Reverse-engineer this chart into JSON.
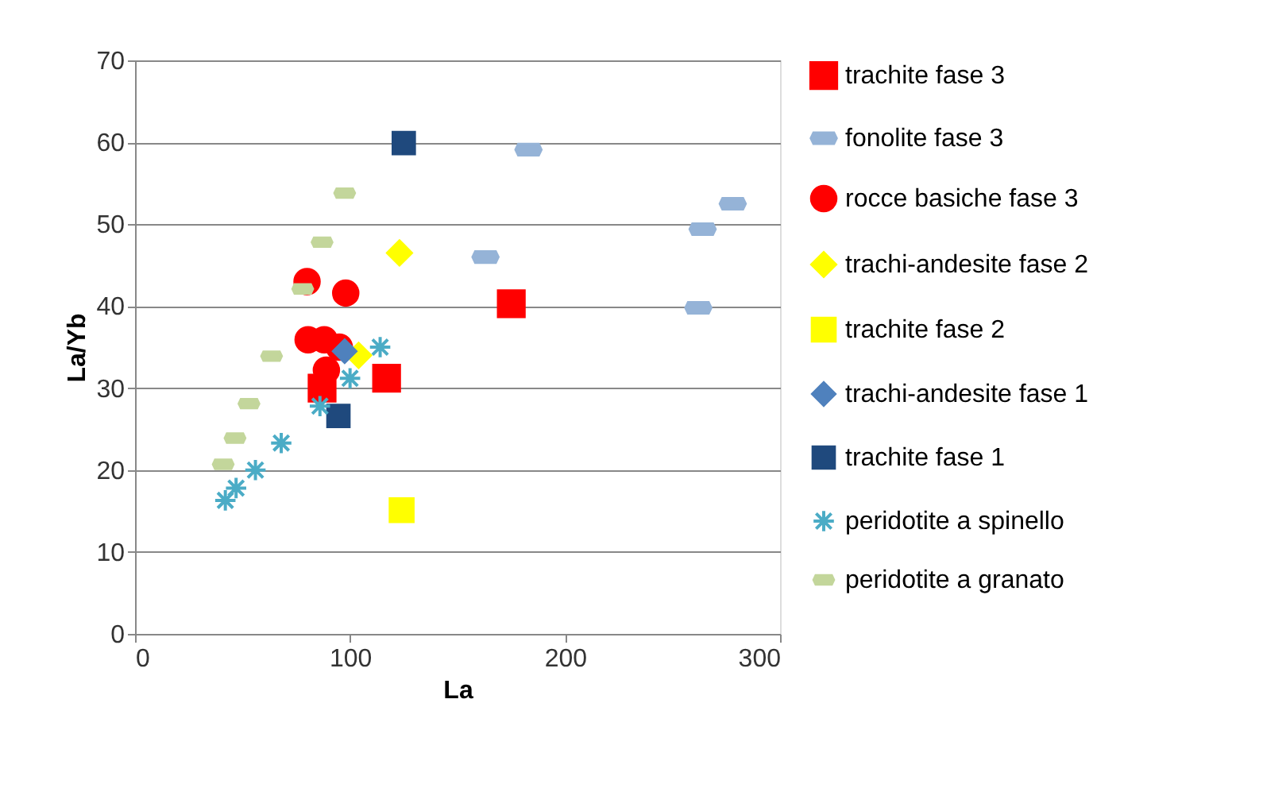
{
  "chart_data": {
    "type": "scatter",
    "xlabel": "La",
    "ylabel": "La/Yb",
    "xlim": [
      0,
      300
    ],
    "xticks": [
      0,
      100,
      200,
      300
    ],
    "ylim": [
      0,
      70
    ],
    "yticks": [
      0,
      10,
      20,
      30,
      40,
      50,
      60,
      70
    ],
    "grid": "y",
    "legend": "right",
    "series": [
      {
        "name": "trachite fase 3",
        "color": "#ff0000",
        "marker": "square",
        "x": [
          175,
          117,
          87
        ],
        "values": [
          40.3,
          31.2,
          30
        ]
      },
      {
        "name": "fonolite fase 3",
        "color": "#95b3d7",
        "x": [
          183,
          278,
          264,
          163,
          262
        ],
        "values": [
          59.1,
          52.5,
          49.4,
          46,
          39.8
        ]
      },
      {
        "name": "rocce basiche fase 3",
        "color": "#ff0000",
        "marker": "circle",
        "x": [
          80,
          98,
          80.5,
          88,
          95,
          89
        ],
        "values": [
          43,
          41.6,
          35.9,
          35.9,
          35,
          32.2
        ]
      },
      {
        "name": "trachi-andesite fase 2",
        "color": "#ffff00",
        "marker": "diamond",
        "x": [
          123,
          104
        ],
        "values": [
          46.5,
          34
        ]
      },
      {
        "name": "trachite fase 2",
        "color": "#ffff00",
        "marker": "square",
        "x": [
          124
        ],
        "values": [
          15.1
        ]
      },
      {
        "name": "trachi-andesite fase 1",
        "color": "#4f81bd",
        "marker": "diamond",
        "x": [
          97.5
        ],
        "values": [
          34.5
        ]
      },
      {
        "name": "trachite fase 1",
        "color": "#1f497d",
        "marker": "square",
        "x": [
          125,
          94.6
        ],
        "values": [
          59.9,
          26.6
        ]
      },
      {
        "name": "peridotite a spinello",
        "color": "#4bacc6",
        "marker": "cross",
        "x": [
          42,
          47,
          56,
          68,
          86,
          100,
          114
        ],
        "values": [
          16.3,
          17.8,
          20,
          23.3,
          27.8,
          31.2,
          35
        ]
      },
      {
        "name": "peridotite a granato",
        "color": "#c3d69b",
        "x": [
          41,
          46.5,
          53,
          63.5,
          78,
          87,
          97.5
        ],
        "values": [
          20.7,
          23.9,
          28.1,
          33.9,
          42.1,
          47.8,
          53.8
        ]
      }
    ]
  }
}
